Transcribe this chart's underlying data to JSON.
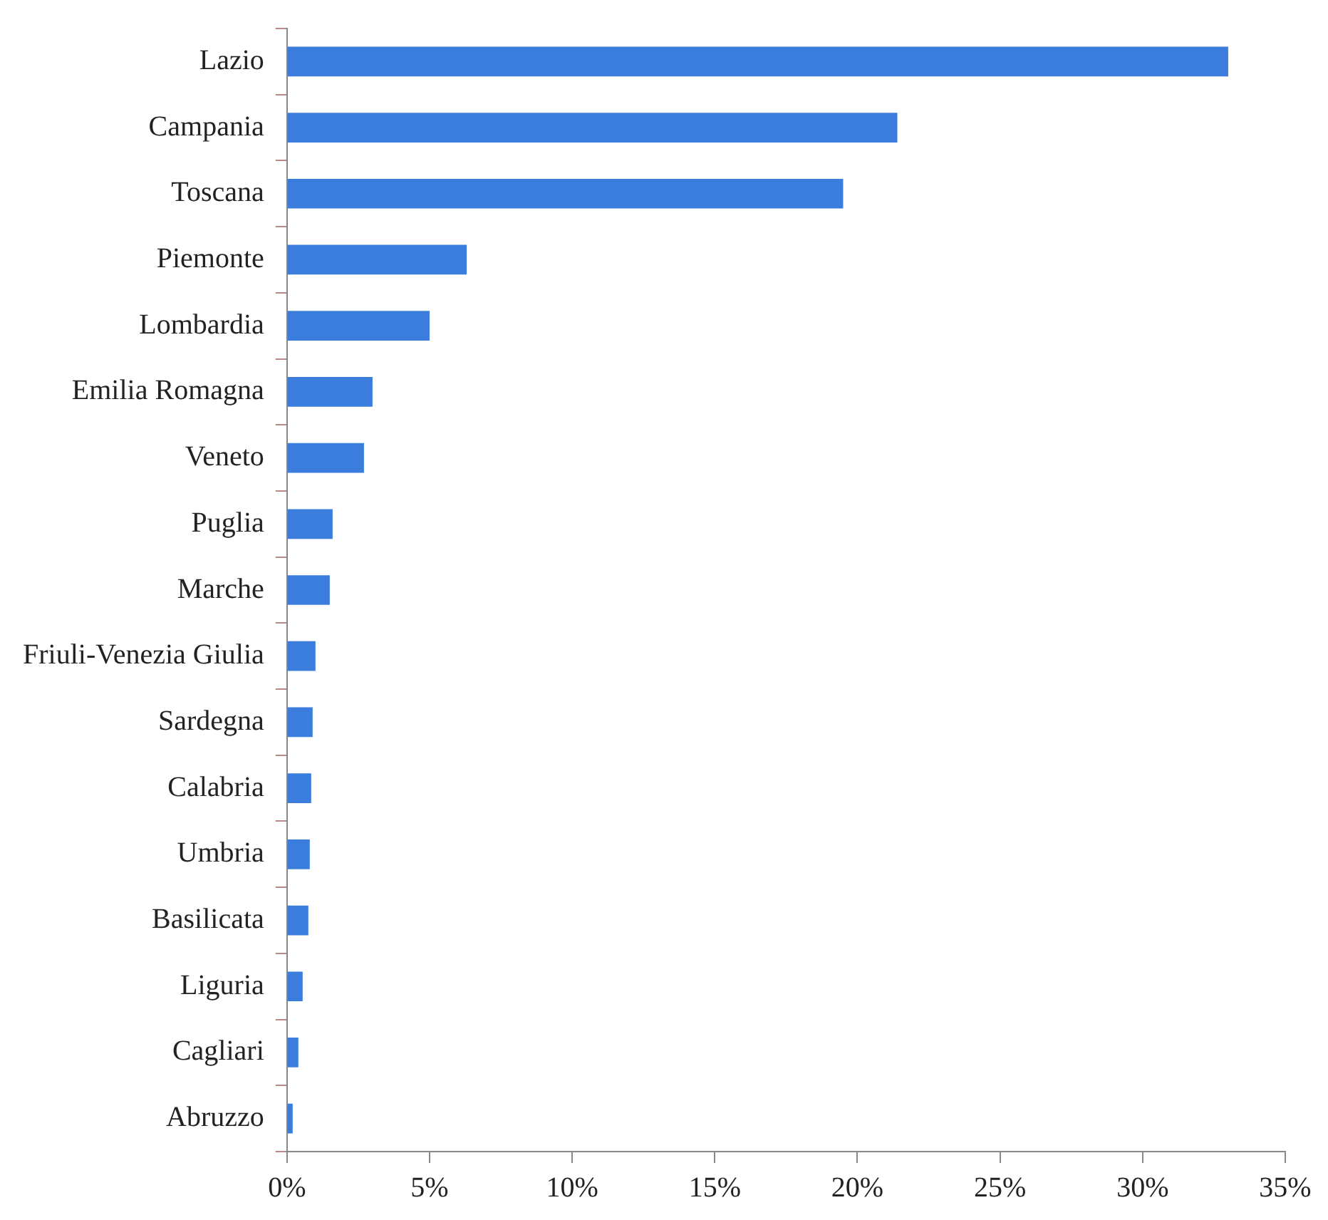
{
  "chart_data": {
    "type": "bar",
    "orientation": "horizontal",
    "categories": [
      "Lazio",
      "Campania",
      "Toscana",
      "Piemonte",
      "Lombardia",
      "Emilia Romagna",
      "Veneto",
      "Puglia",
      "Marche",
      "Friuli-Venezia Giulia",
      "Sardegna",
      "Calabria",
      "Umbria",
      "Basilicata",
      "Liguria",
      "Cagliari",
      "Abruzzo"
    ],
    "values": [
      33.0,
      21.4,
      19.5,
      6.3,
      5.0,
      3.0,
      2.7,
      1.6,
      1.5,
      1.0,
      0.9,
      0.85,
      0.8,
      0.75,
      0.55,
      0.4,
      0.2
    ],
    "color": "#3b7ddd",
    "xlim": [
      0,
      35
    ],
    "xticks": [
      {
        "value": 0,
        "label": "0%"
      },
      {
        "value": 5,
        "label": "5%"
      },
      {
        "value": 10,
        "label": "10%"
      },
      {
        "value": 15,
        "label": "15%"
      },
      {
        "value": 20,
        "label": "20%"
      },
      {
        "value": 25,
        "label": "25%"
      },
      {
        "value": 30,
        "label": "30%"
      },
      {
        "value": 35,
        "label": "35%"
      }
    ],
    "grid": false,
    "legend": false
  }
}
